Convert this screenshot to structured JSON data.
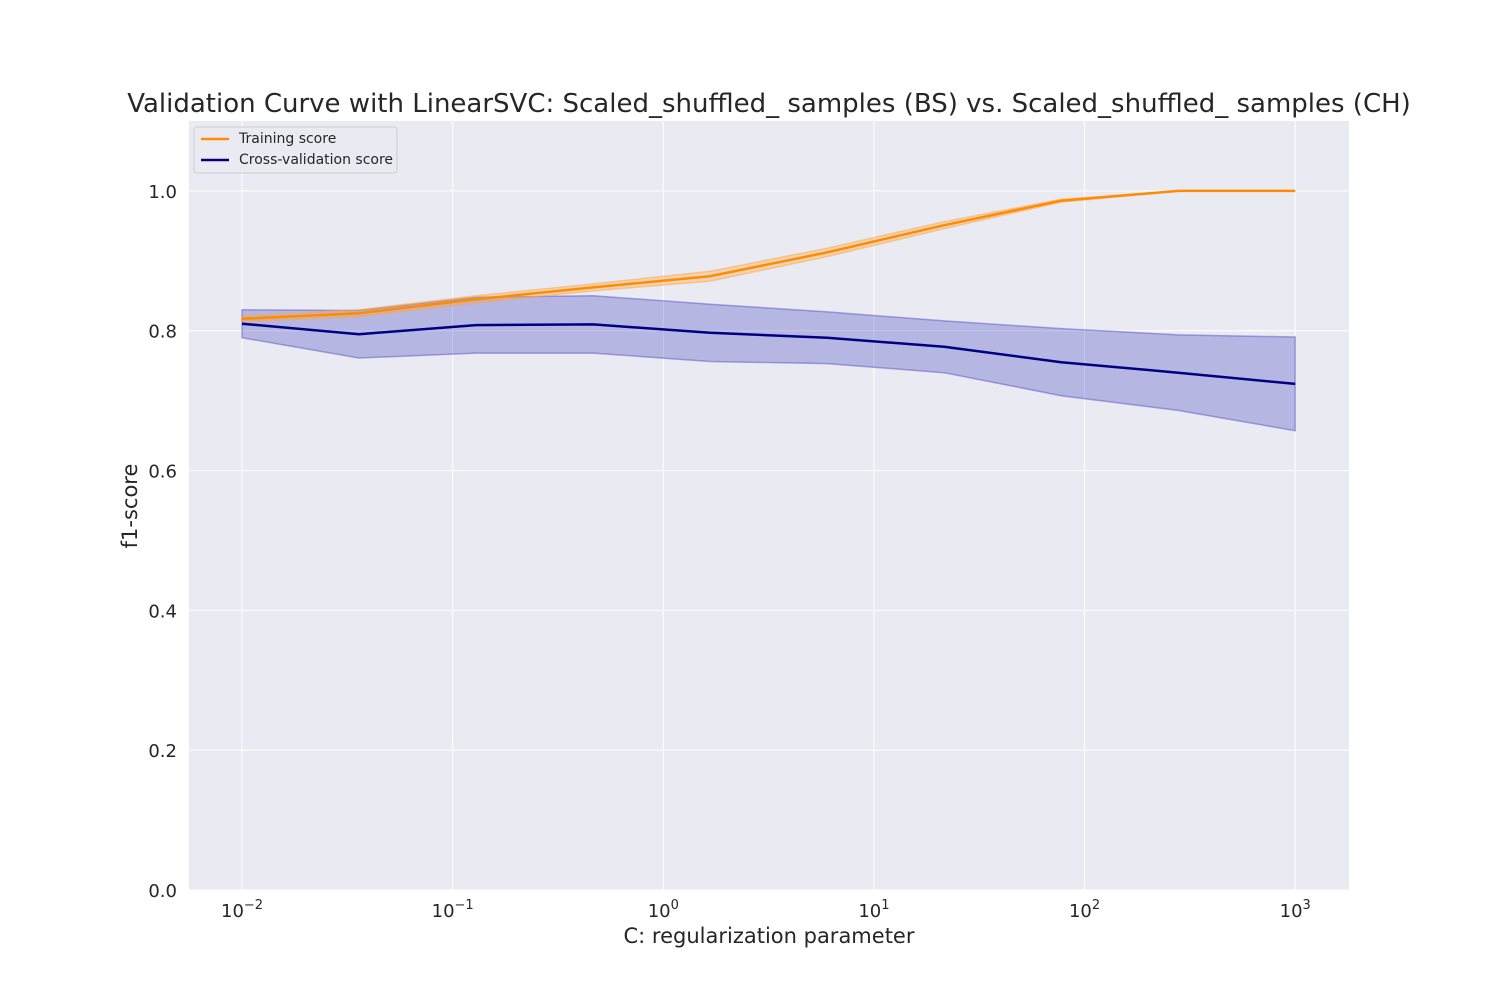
{
  "chart_data": {
    "type": "line",
    "title": "Validation Curve with LinearSVC: Scaled_shuffled_ samples (BS) vs. Scaled_shuffled_ samples (CH)",
    "xlabel": "C: regularization parameter",
    "ylabel": "f1-score",
    "xscale": "log",
    "xlim": [
      0.0056,
      1800
    ],
    "ylim": [
      0.0,
      1.1
    ],
    "grid": true,
    "legend_position": "upper-left",
    "x_ticks": [
      {
        "value": 0.01,
        "base": "10",
        "exp": "−2"
      },
      {
        "value": 0.1,
        "base": "10",
        "exp": "−1"
      },
      {
        "value": 1,
        "base": "10",
        "exp": "0"
      },
      {
        "value": 10,
        "base": "10",
        "exp": "1"
      },
      {
        "value": 100,
        "base": "10",
        "exp": "2"
      },
      {
        "value": 1000,
        "base": "10",
        "exp": "3"
      }
    ],
    "y_ticks": [
      {
        "value": 0.0,
        "label": "0.0"
      },
      {
        "value": 0.2,
        "label": "0.2"
      },
      {
        "value": 0.4,
        "label": "0.4"
      },
      {
        "value": 0.6,
        "label": "0.6"
      },
      {
        "value": 0.8,
        "label": "0.8"
      },
      {
        "value": 1.0,
        "label": "1.0"
      }
    ],
    "x": [
      0.01,
      0.0359,
      0.129,
      0.464,
      1.668,
      5.995,
      21.54,
      77.43,
      278.3,
      1000
    ],
    "series": [
      {
        "name": "Training score",
        "color": "#ff8c00",
        "band_color": "#ffa640",
        "values": [
          0.817,
          0.825,
          0.845,
          0.862,
          0.878,
          0.912,
          0.951,
          0.986,
          1.0,
          1.0
        ],
        "lower": [
          0.813,
          0.82,
          0.84,
          0.857,
          0.871,
          0.906,
          0.946,
          0.984,
          1.0,
          1.0
        ],
        "upper": [
          0.821,
          0.83,
          0.85,
          0.867,
          0.885,
          0.918,
          0.956,
          0.988,
          1.0,
          1.0
        ]
      },
      {
        "name": "Cross-validation score",
        "color": "#000080",
        "band_color": "#5555c8",
        "values": [
          0.81,
          0.795,
          0.808,
          0.809,
          0.797,
          0.79,
          0.777,
          0.755,
          0.74,
          0.724
        ],
        "lower": [
          0.79,
          0.761,
          0.768,
          0.768,
          0.756,
          0.753,
          0.74,
          0.707,
          0.686,
          0.657
        ],
        "upper": [
          0.83,
          0.829,
          0.848,
          0.85,
          0.838,
          0.827,
          0.814,
          0.803,
          0.794,
          0.791
        ]
      }
    ]
  },
  "colors": {
    "plot_background": "#eaeaf2",
    "grid": "#ffffff",
    "text": "#262626"
  }
}
